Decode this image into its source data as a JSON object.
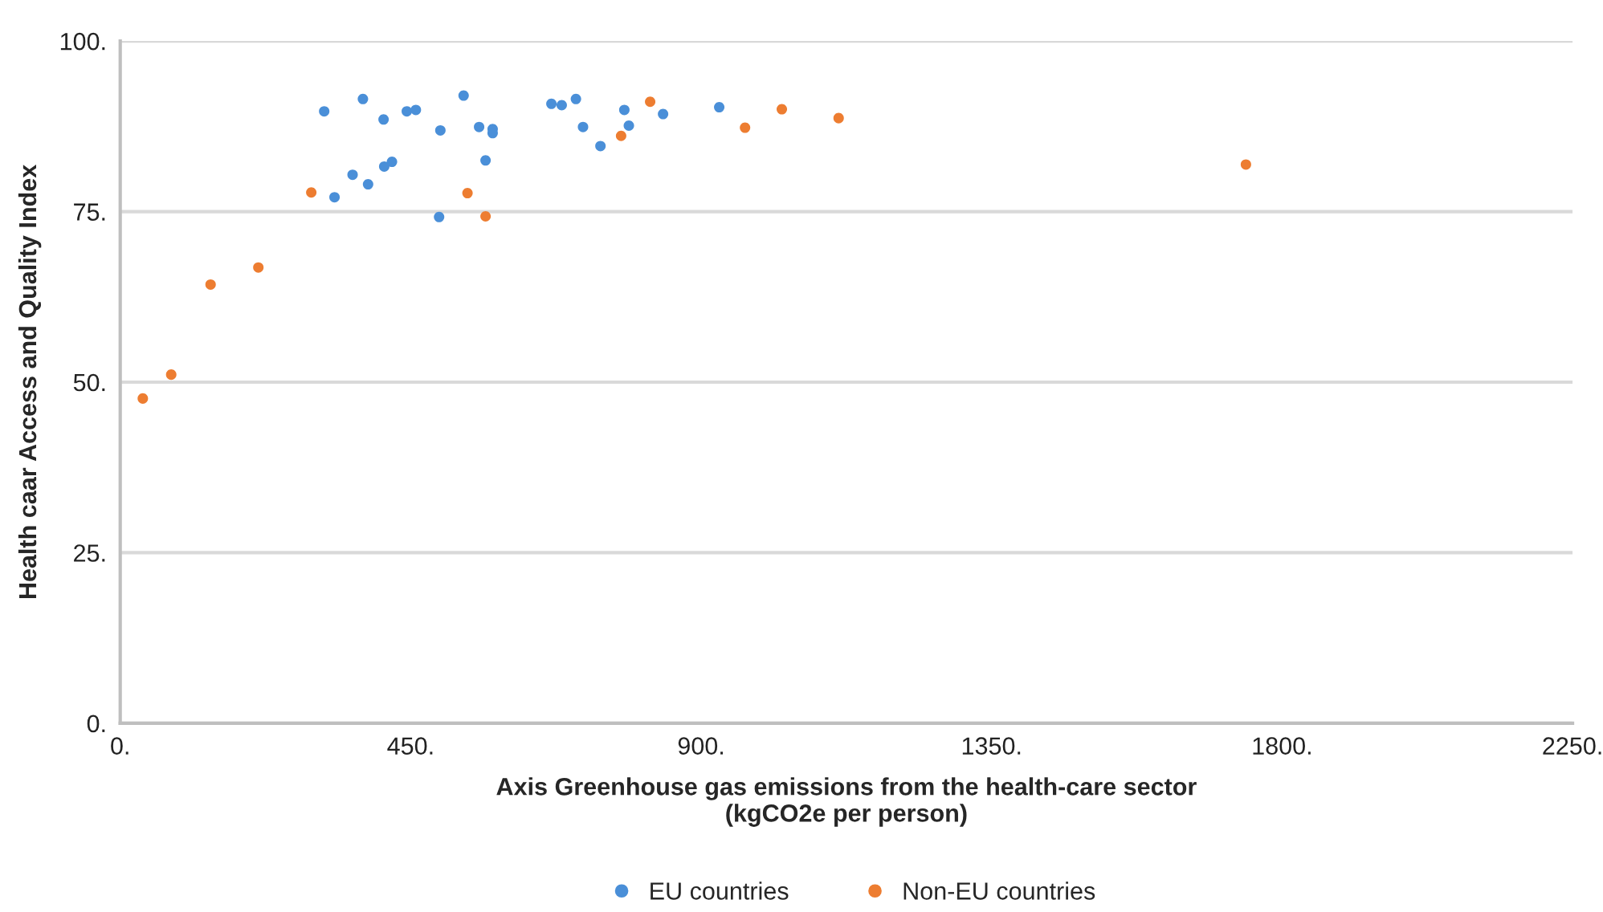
{
  "chart_data": {
    "type": "scatter",
    "xlabel": "Axis Greenhouse gas emissions from the health-care sector\n(kgCO2e per person)",
    "ylabel": "Health caar Access and Quality Index",
    "series": [
      {
        "name": "EU countries",
        "color": "#4a8fd8",
        "x": [
          316,
          376,
          408,
          444,
          458,
          532,
          496,
          556,
          577,
          577,
          566,
          360,
          384,
          409,
          421,
          332,
          494,
          668,
          684,
          706,
          717,
          744,
          781,
          788,
          841,
          928
        ],
        "values": [
          89.7,
          91.5,
          88.5,
          89.7,
          89.9,
          92.0,
          86.9,
          87.4,
          87.1,
          86.5,
          82.5,
          80.4,
          79.0,
          81.6,
          82.3,
          77.1,
          74.2,
          90.8,
          90.6,
          91.5,
          87.4,
          84.6,
          89.9,
          87.6,
          89.3,
          90.3
        ]
      },
      {
        "name": "Non-EU countries",
        "color": "#ed7d31",
        "x": [
          35,
          79,
          140,
          214,
          296,
          538,
          566,
          821,
          776,
          968,
          1025,
          1113,
          1744
        ],
        "values": [
          47.6,
          51.1,
          64.3,
          66.8,
          77.8,
          77.7,
          74.3,
          91.1,
          86.1,
          87.3,
          90.0,
          88.7,
          81.9
        ]
      }
    ],
    "xlim": [
      0,
      2250
    ],
    "ylim": [
      0,
      100
    ],
    "xticks": [
      {
        "value": 0,
        "label": "0."
      },
      {
        "value": 450,
        "label": "450."
      },
      {
        "value": 900,
        "label": "900."
      },
      {
        "value": 1350,
        "label": "1350."
      },
      {
        "value": 1800,
        "label": "1800."
      },
      {
        "value": 2250,
        "label": "2250."
      }
    ],
    "yticks": [
      {
        "value": 0,
        "label": "0."
      },
      {
        "value": 25,
        "label": "25."
      },
      {
        "value": 50,
        "label": "50."
      },
      {
        "value": 75,
        "label": "75."
      },
      {
        "value": 100,
        "label": "100."
      }
    ],
    "grid": "y",
    "legend": "bottom",
    "marker": "circle"
  }
}
